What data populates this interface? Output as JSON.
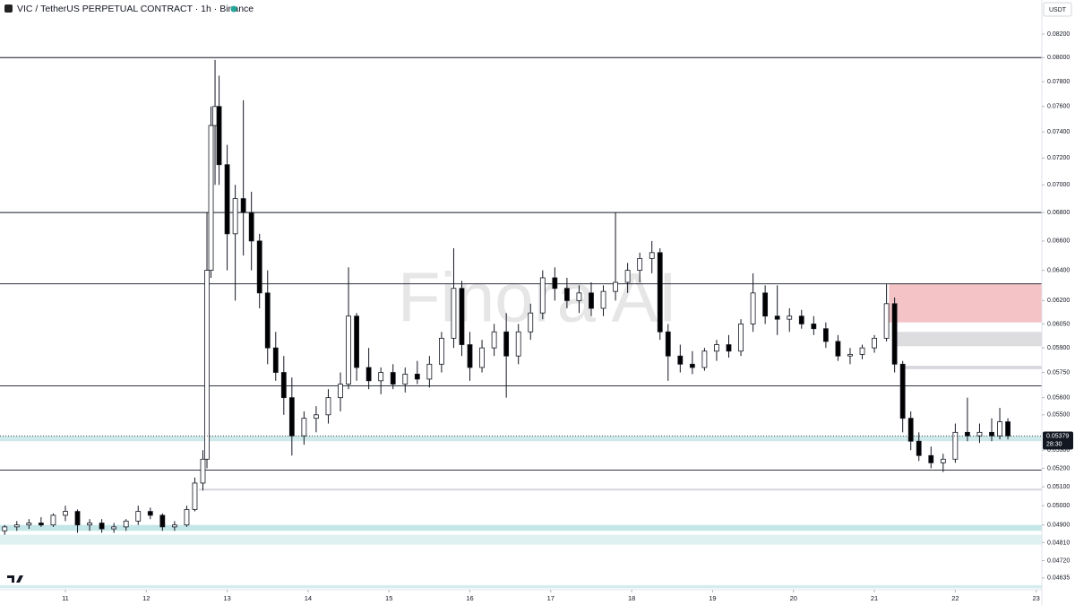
{
  "header": {
    "title": "VIC / TetherUS PERPETUAL CONTRACT · 1h · Binance",
    "currency": "USDT"
  },
  "watermark": "Finora AI",
  "chart_data": {
    "type": "candlestick",
    "log_scale": true,
    "up_color": "#ffffff",
    "down_color": "#000000",
    "xlim": [
      10.192,
      23.07
    ],
    "xticks": [
      11,
      12,
      13,
      14,
      15,
      16,
      17,
      18,
      19,
      20,
      21,
      22,
      23
    ],
    "ylim": [
      0.04578,
      0.08498
    ],
    "yticks": [
      {
        "value": 0.082,
        "label": "0.08200"
      },
      {
        "value": 0.08,
        "label": "0.08000"
      },
      {
        "value": 0.078,
        "label": "0.07800"
      },
      {
        "value": 0.076,
        "label": "0.07600"
      },
      {
        "value": 0.074,
        "label": "0.07400"
      },
      {
        "value": 0.072,
        "label": "0.07200"
      },
      {
        "value": 0.07,
        "label": "0.07000"
      },
      {
        "value": 0.068,
        "label": "0.06800"
      },
      {
        "value": 0.066,
        "label": "0.06600"
      },
      {
        "value": 0.064,
        "label": "0.06400"
      },
      {
        "value": 0.062,
        "label": "0.06200"
      },
      {
        "value": 0.0605,
        "label": "0.06050"
      },
      {
        "value": 0.059,
        "label": "0.05900"
      },
      {
        "value": 0.0575,
        "label": "0.05750"
      },
      {
        "value": 0.056,
        "label": "0.05600"
      },
      {
        "value": 0.055,
        "label": "0.05500"
      },
      {
        "value": 0.053,
        "label": "0.05300"
      },
      {
        "value": 0.052,
        "label": "0.05200"
      },
      {
        "value": 0.051,
        "label": "0.05100"
      },
      {
        "value": 0.05,
        "label": "0.05000"
      },
      {
        "value": 0.049,
        "label": "0.04900"
      },
      {
        "value": 0.0481,
        "label": "0.04810"
      },
      {
        "value": 0.0472,
        "label": "0.04720"
      },
      {
        "value": 0.04635,
        "label": "0.04635"
      }
    ],
    "current_price": {
      "value": 0.05379,
      "label": "0.05379",
      "countdown": "28:30"
    },
    "levels": [
      0.08,
      0.068,
      0.0631,
      0.0567,
      0.0519
    ],
    "zones": [
      {
        "low": 0.0535,
        "high": 0.0538,
        "color": "#cfe9ea"
      },
      {
        "low": 0.0487,
        "high": 0.049,
        "color": "#c4e6e8"
      },
      {
        "low": 0.048,
        "high": 0.0485,
        "color": "#e0f1f2"
      },
      {
        "low": 0.04585,
        "high": 0.046,
        "color": "#d5ecee"
      },
      {
        "low": 0.0508,
        "high": 0.0509,
        "color": "#d8d6dc",
        "x_start": 12.65
      },
      {
        "low": 0.0606,
        "high": 0.0631,
        "color": "#f3c3c6",
        "x_start": 21.18
      },
      {
        "low": 0.0591,
        "high": 0.06,
        "color": "#dddde0",
        "x_start": 21.27
      },
      {
        "low": 0.0577,
        "high": 0.0579,
        "color": "#d8d6dc",
        "x_start": 21.32
      }
    ],
    "x": [
      10.25,
      10.4,
      10.55,
      10.7,
      10.85,
      11.0,
      11.15,
      11.3,
      11.45,
      11.6,
      11.75,
      11.9,
      12.05,
      12.2,
      12.35,
      12.5,
      12.6,
      12.7,
      12.75,
      12.8,
      12.85,
      12.9,
      13.0,
      13.1,
      13.2,
      13.3,
      13.4,
      13.5,
      13.6,
      13.7,
      13.8,
      13.95,
      14.1,
      14.25,
      14.4,
      14.5,
      14.6,
      14.75,
      14.9,
      15.05,
      15.2,
      15.35,
      15.5,
      15.65,
      15.8,
      15.9,
      16.0,
      16.15,
      16.3,
      16.45,
      16.6,
      16.75,
      16.9,
      17.05,
      17.2,
      17.35,
      17.5,
      17.65,
      17.8,
      17.95,
      18.1,
      18.25,
      18.35,
      18.45,
      18.6,
      18.75,
      18.9,
      19.05,
      19.2,
      19.35,
      19.5,
      19.65,
      19.8,
      19.95,
      20.1,
      20.25,
      20.4,
      20.55,
      20.7,
      20.85,
      21.0,
      21.15,
      21.25,
      21.35,
      21.45,
      21.55,
      21.7,
      21.85,
      22.0,
      22.15,
      22.3,
      22.45,
      22.55,
      22.65
    ],
    "candles": [
      [
        0.0487,
        0.049,
        0.0485,
        0.0489
      ],
      [
        0.0489,
        0.0492,
        0.0487,
        0.049
      ],
      [
        0.049,
        0.0493,
        0.0488,
        0.0491
      ],
      [
        0.0491,
        0.0494,
        0.0489,
        0.049
      ],
      [
        0.049,
        0.0496,
        0.0489,
        0.0495
      ],
      [
        0.0495,
        0.05,
        0.0492,
        0.0497
      ],
      [
        0.0497,
        0.0498,
        0.0486,
        0.049
      ],
      [
        0.049,
        0.0493,
        0.0487,
        0.0491
      ],
      [
        0.0491,
        0.0493,
        0.0486,
        0.0488
      ],
      [
        0.0488,
        0.0491,
        0.0486,
        0.0489
      ],
      [
        0.0489,
        0.0493,
        0.0487,
        0.0492
      ],
      [
        0.0492,
        0.05,
        0.049,
        0.0497
      ],
      [
        0.0497,
        0.0499,
        0.0493,
        0.0495
      ],
      [
        0.0495,
        0.0496,
        0.0487,
        0.0489
      ],
      [
        0.0489,
        0.0492,
        0.0487,
        0.049
      ],
      [
        0.049,
        0.05,
        0.0489,
        0.0498
      ],
      [
        0.0498,
        0.0515,
        0.0497,
        0.0512
      ],
      [
        0.0512,
        0.053,
        0.0508,
        0.0525
      ],
      [
        0.0525,
        0.068,
        0.052,
        0.064
      ],
      [
        0.064,
        0.076,
        0.0635,
        0.0745
      ],
      [
        0.0745,
        0.0798,
        0.07,
        0.076
      ],
      [
        0.076,
        0.0785,
        0.07,
        0.0715
      ],
      [
        0.0715,
        0.073,
        0.064,
        0.0665
      ],
      [
        0.0665,
        0.07,
        0.062,
        0.069
      ],
      [
        0.069,
        0.0765,
        0.065,
        0.068
      ],
      [
        0.068,
        0.0695,
        0.064,
        0.066
      ],
      [
        0.066,
        0.0665,
        0.0615,
        0.0625
      ],
      [
        0.0625,
        0.064,
        0.058,
        0.059
      ],
      [
        0.059,
        0.06,
        0.057,
        0.0575
      ],
      [
        0.0575,
        0.0585,
        0.055,
        0.056
      ],
      [
        0.056,
        0.0572,
        0.0527,
        0.0538
      ],
      [
        0.0538,
        0.0552,
        0.0533,
        0.0548
      ],
      [
        0.0548,
        0.0555,
        0.054,
        0.055
      ],
      [
        0.055,
        0.0565,
        0.0545,
        0.056
      ],
      [
        0.056,
        0.0575,
        0.0552,
        0.0568
      ],
      [
        0.0568,
        0.0642,
        0.0565,
        0.061
      ],
      [
        0.061,
        0.0612,
        0.057,
        0.0578
      ],
      [
        0.0578,
        0.059,
        0.0565,
        0.057
      ],
      [
        0.057,
        0.0578,
        0.0562,
        0.0575
      ],
      [
        0.0575,
        0.058,
        0.0565,
        0.0568
      ],
      [
        0.0568,
        0.0578,
        0.0563,
        0.0574
      ],
      [
        0.0574,
        0.0582,
        0.0568,
        0.0571
      ],
      [
        0.0571,
        0.0585,
        0.0566,
        0.058
      ],
      [
        0.058,
        0.06,
        0.0575,
        0.0596
      ],
      [
        0.0596,
        0.0655,
        0.059,
        0.0628
      ],
      [
        0.0628,
        0.0633,
        0.0585,
        0.0592
      ],
      [
        0.0592,
        0.06,
        0.057,
        0.0578
      ],
      [
        0.0578,
        0.0595,
        0.0575,
        0.059
      ],
      [
        0.059,
        0.0605,
        0.0585,
        0.06
      ],
      [
        0.06,
        0.0612,
        0.056,
        0.0585
      ],
      [
        0.0585,
        0.0605,
        0.058,
        0.06
      ],
      [
        0.06,
        0.0618,
        0.0595,
        0.0612
      ],
      [
        0.0612,
        0.064,
        0.0608,
        0.0635
      ],
      [
        0.0635,
        0.0642,
        0.062,
        0.0628
      ],
      [
        0.0628,
        0.0635,
        0.0615,
        0.062
      ],
      [
        0.062,
        0.063,
        0.0612,
        0.0625
      ],
      [
        0.0625,
        0.0632,
        0.061,
        0.0615
      ],
      [
        0.0615,
        0.063,
        0.061,
        0.0626
      ],
      [
        0.0626,
        0.068,
        0.062,
        0.0632
      ],
      [
        0.0632,
        0.0645,
        0.0625,
        0.064
      ],
      [
        0.064,
        0.0652,
        0.0632,
        0.0648
      ],
      [
        0.0648,
        0.066,
        0.0638,
        0.0652
      ],
      [
        0.0652,
        0.0655,
        0.0595,
        0.06
      ],
      [
        0.06,
        0.0605,
        0.057,
        0.0585
      ],
      [
        0.0585,
        0.0592,
        0.0575,
        0.058
      ],
      [
        0.058,
        0.0588,
        0.0574,
        0.0578
      ],
      [
        0.0578,
        0.059,
        0.0576,
        0.0588
      ],
      [
        0.0588,
        0.0595,
        0.0582,
        0.0592
      ],
      [
        0.0592,
        0.0598,
        0.0584,
        0.0588
      ],
      [
        0.0588,
        0.0608,
        0.0585,
        0.0605
      ],
      [
        0.0605,
        0.0638,
        0.06,
        0.0625
      ],
      [
        0.0625,
        0.063,
        0.0605,
        0.061
      ],
      [
        0.061,
        0.063,
        0.0598,
        0.0608
      ],
      [
        0.0608,
        0.0615,
        0.06,
        0.061
      ],
      [
        0.061,
        0.0614,
        0.0602,
        0.0605
      ],
      [
        0.0605,
        0.061,
        0.0598,
        0.0602
      ],
      [
        0.0602,
        0.0606,
        0.059,
        0.0594
      ],
      [
        0.0594,
        0.0598,
        0.0582,
        0.0585
      ],
      [
        0.0585,
        0.059,
        0.058,
        0.0586
      ],
      [
        0.0586,
        0.0592,
        0.0583,
        0.059
      ],
      [
        0.059,
        0.0598,
        0.0587,
        0.0596
      ],
      [
        0.0596,
        0.0631,
        0.0594,
        0.0618
      ],
      [
        0.0618,
        0.0622,
        0.0575,
        0.058
      ],
      [
        0.058,
        0.0582,
        0.054,
        0.0548
      ],
      [
        0.0548,
        0.0552,
        0.053,
        0.0535
      ],
      [
        0.0535,
        0.054,
        0.0524,
        0.0527
      ],
      [
        0.0527,
        0.0532,
        0.052,
        0.0523
      ],
      [
        0.0523,
        0.0528,
        0.0518,
        0.0525
      ],
      [
        0.0525,
        0.0545,
        0.0523,
        0.054
      ],
      [
        0.054,
        0.056,
        0.0535,
        0.0538
      ],
      [
        0.0538,
        0.0545,
        0.0534,
        0.054
      ],
      [
        0.054,
        0.0548,
        0.0535,
        0.0538
      ],
      [
        0.0538,
        0.0554,
        0.0536,
        0.0546
      ],
      [
        0.0546,
        0.0548,
        0.0536,
        0.0538
      ]
    ]
  }
}
